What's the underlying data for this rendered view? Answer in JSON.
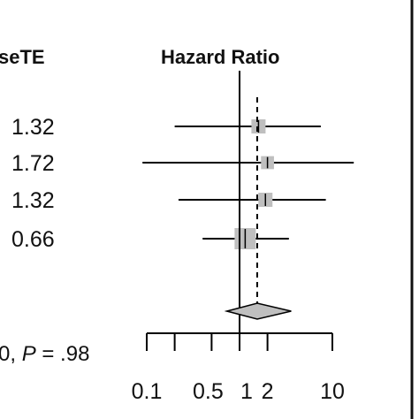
{
  "chart_data": {
    "type": "forest",
    "column_header": "seTE",
    "effect_header": "Hazard Ratio",
    "scale": "log",
    "xlim": [
      0.1,
      10
    ],
    "ticks": [
      0.1,
      0.5,
      1,
      2,
      10
    ],
    "tick_labels": [
      "0.1",
      "0.5",
      "1",
      "2",
      "10"
    ],
    "minor_ticks": [
      0.2
    ],
    "reference_line": 1,
    "pooled_line": 1.55,
    "studies": [
      {
        "seTE": "1.32",
        "hr": 1.6,
        "lower": 0.2,
        "upper": 7.5,
        "weight": 1.0
      },
      {
        "seTE": "1.72",
        "hr": 2.0,
        "lower": 0.09,
        "upper": 17,
        "weight": 0.7
      },
      {
        "seTE": "1.32",
        "hr": 1.9,
        "lower": 0.22,
        "upper": 8.5,
        "weight": 1.0
      },
      {
        "seTE": "0.66",
        "hr": 1.15,
        "lower": 0.4,
        "upper": 3.4,
        "weight": 4.0
      }
    ],
    "pooled": {
      "hr": 1.55,
      "lower": 0.73,
      "upper": 3.6
    },
    "heterogeneity_text_start": "0, ",
    "heterogeneity_p_label": "P",
    "heterogeneity_text_end": " = .98",
    "colors": {
      "box": "#bfbfbf",
      "diamond": "#bfbfbf",
      "line": "#000000"
    }
  }
}
